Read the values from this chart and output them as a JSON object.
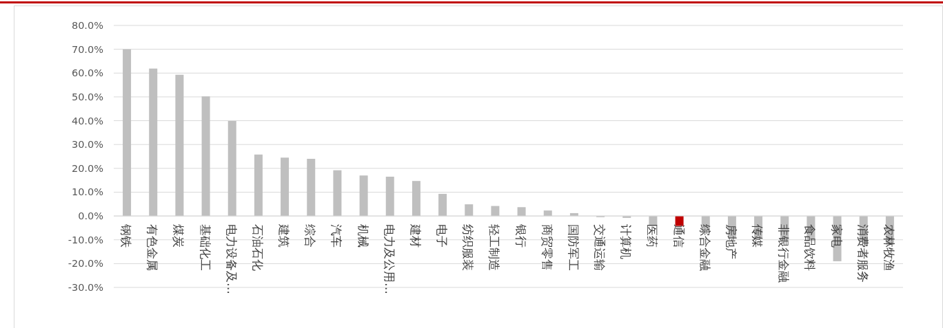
{
  "chart_data": {
    "type": "bar",
    "categories": [
      "钢铁",
      "有色金属",
      "煤炭",
      "基础化工",
      "电力设备及…",
      "石油石化",
      "建筑",
      "综合",
      "汽车",
      "机械",
      "电力及公用…",
      "建材",
      "电子",
      "纺织服装",
      "轻工制造",
      "银行",
      "商贸零售",
      "国防军工",
      "交通运输",
      "计算机",
      "医药",
      "通信",
      "综合金融",
      "房地产",
      "传媒",
      "非银行金融",
      "食品饮料",
      "家电",
      "消费者服务",
      "农林牧渔"
    ],
    "values": [
      70.0,
      61.9,
      59.3,
      50.2,
      39.9,
      25.8,
      24.5,
      24.0,
      19.2,
      17.0,
      16.5,
      14.7,
      9.3,
      4.9,
      4.2,
      3.7,
      2.3,
      1.2,
      -0.5,
      -0.8,
      -4.1,
      -4.2,
      -7.0,
      -9.5,
      -9.5,
      -10.5,
      -10.5,
      -19.0,
      -11.0,
      -12.0
    ],
    "colors": [
      "#bfbfbf",
      "#bfbfbf",
      "#bfbfbf",
      "#bfbfbf",
      "#bfbfbf",
      "#bfbfbf",
      "#bfbfbf",
      "#bfbfbf",
      "#bfbfbf",
      "#bfbfbf",
      "#bfbfbf",
      "#bfbfbf",
      "#bfbfbf",
      "#bfbfbf",
      "#bfbfbf",
      "#bfbfbf",
      "#bfbfbf",
      "#bfbfbf",
      "#bfbfbf",
      "#bfbfbf",
      "#bfbfbf",
      "#c00000",
      "#bfbfbf",
      "#bfbfbf",
      "#bfbfbf",
      "#bfbfbf",
      "#bfbfbf",
      "#bfbfbf",
      "#bfbfbf",
      "#bfbfbf"
    ],
    "ylim": [
      -30,
      80
    ],
    "yticks": [
      {
        "value": -30,
        "label": "-30.0%"
      },
      {
        "value": -20,
        "label": "-20.0%"
      },
      {
        "value": -10,
        "label": "-10.0%"
      },
      {
        "value": 0,
        "label": "0.0%"
      },
      {
        "value": 10,
        "label": "10.0%"
      },
      {
        "value": 20,
        "label": "20.0%"
      },
      {
        "value": 30,
        "label": "30.0%"
      },
      {
        "value": 40,
        "label": "40.0%"
      },
      {
        "value": 50,
        "label": "50.0%"
      },
      {
        "value": 60,
        "label": "60.0%"
      },
      {
        "value": 70,
        "label": "70.0%"
      },
      {
        "value": 80,
        "label": "80.0%"
      }
    ],
    "grid": "y"
  }
}
